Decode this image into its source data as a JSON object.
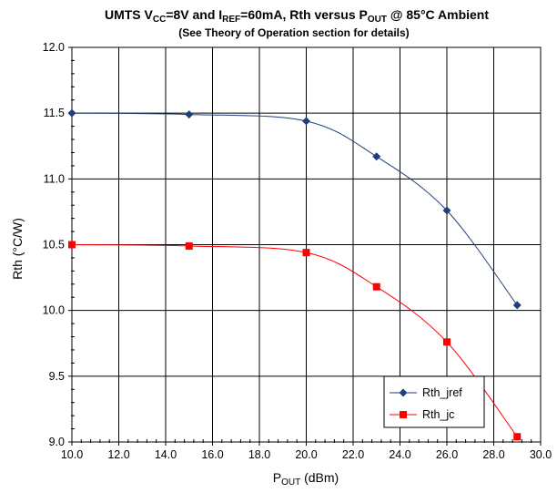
{
  "chart_data": {
    "type": "line",
    "title": {
      "parts": [
        {
          "t": "UMTS V",
          "sub": false
        },
        {
          "t": "CC",
          "sub": true
        },
        {
          "t": "=8V and I",
          "sub": false
        },
        {
          "t": "REF",
          "sub": true
        },
        {
          "t": "=60mA, Rth versus P",
          "sub": false
        },
        {
          "t": "OUT",
          "sub": true
        },
        {
          "t": " @ 85°C Ambient",
          "sub": false
        }
      ]
    },
    "subtitle": "(See Theory of Operation section for details)",
    "xlabel": {
      "main": "P",
      "sub": "OUT",
      "unit": " (dBm)"
    },
    "ylabel": "Rth (°C/W)",
    "xlim": [
      10.0,
      30.0
    ],
    "ylim": [
      9.0,
      12.0
    ],
    "xticks": [
      "10.0",
      "12.0",
      "14.0",
      "16.0",
      "18.0",
      "20.0",
      "22.0",
      "24.0",
      "26.0",
      "28.0",
      "30.0"
    ],
    "yticks": [
      "9.0",
      "9.5",
      "10.0",
      "10.5",
      "11.0",
      "11.5",
      "12.0"
    ],
    "grid": true,
    "legend_position": "bottom-right",
    "series": [
      {
        "name": "Rth_jref",
        "color": "#1f3f7a",
        "marker": "diamond",
        "x": [
          10,
          15,
          20,
          23,
          26,
          29
        ],
        "y": [
          11.5,
          11.49,
          11.44,
          11.17,
          10.76,
          10.04
        ]
      },
      {
        "name": "Rth_jc",
        "color": "#ff0000",
        "marker": "square",
        "x": [
          10,
          15,
          20,
          23,
          26,
          29
        ],
        "y": [
          10.5,
          10.49,
          10.44,
          10.18,
          9.76,
          9.04
        ]
      }
    ]
  }
}
